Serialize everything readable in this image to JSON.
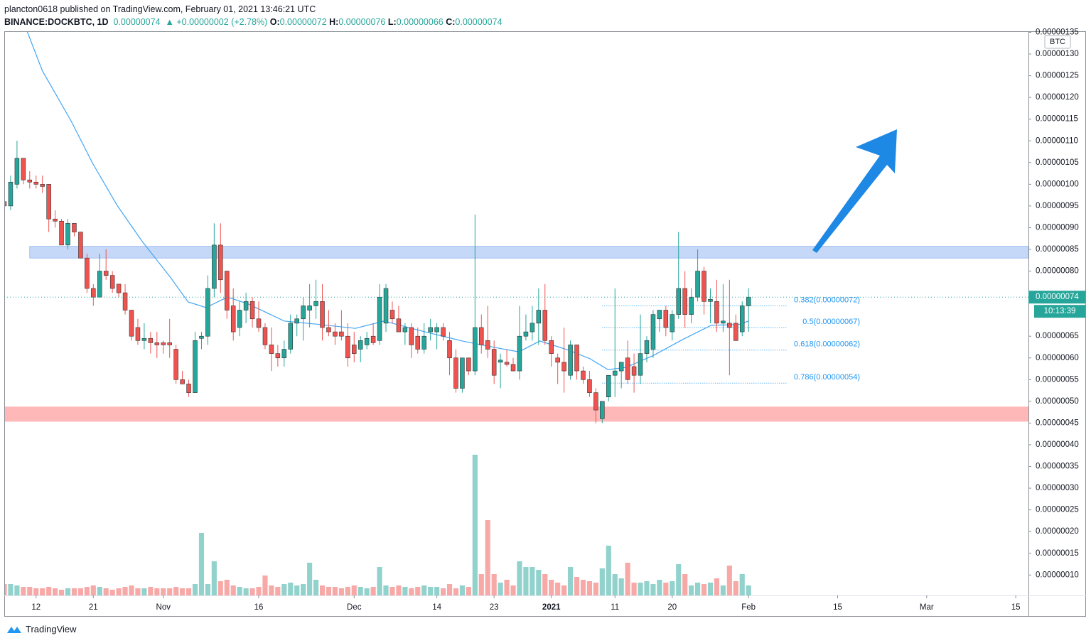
{
  "header": {
    "published": "plancton0618 published on TradingView.com, February 01, 2021 13:46:21 UTC",
    "symbol": "BINANCE:DOCKBTC, 1D",
    "price": "0.00000074",
    "change": "+0.00000002 (+2.78%)",
    "ohlc": [
      {
        "k": "O:",
        "v": "0.00000072"
      },
      {
        "k": "H:",
        "v": "0.00000076"
      },
      {
        "k": "L:",
        "v": "0.00000066"
      },
      {
        "k": "C:",
        "v": "0.00000074"
      }
    ]
  },
  "footer": {
    "brand": "TradingView"
  },
  "chart_data": {
    "type": "candlestick",
    "currency": "BTC",
    "countdown": "10:13:39",
    "up_color": "#26a69a",
    "down_color": "#ef5350",
    "xlim": [
      0,
      161
    ],
    "ylim": [
      5.3e-08,
      1.3524e-06
    ],
    "xticks": [
      {
        "value": 5,
        "label": "12"
      },
      {
        "value": 14,
        "label": "21"
      },
      {
        "value": 25,
        "label": "Nov"
      },
      {
        "value": 40,
        "label": "16"
      },
      {
        "value": 55,
        "label": "Dec"
      },
      {
        "value": 68,
        "label": "14"
      },
      {
        "value": 77,
        "label": "23"
      },
      {
        "value": 86,
        "label": "2021"
      },
      {
        "value": 96,
        "label": "11"
      },
      {
        "value": 105,
        "label": "20"
      },
      {
        "value": 117,
        "label": "Feb"
      },
      {
        "value": 131,
        "label": "15"
      },
      {
        "value": 145,
        "label": "Mar"
      },
      {
        "value": 159,
        "label": "15"
      }
    ],
    "yticks": [
      {
        "value": 1e-07,
        "label": "0.00000010"
      },
      {
        "value": 1.5e-07,
        "label": "0.00000015"
      },
      {
        "value": 2e-07,
        "label": "0.00000020"
      },
      {
        "value": 2.5e-07,
        "label": "0.00000025"
      },
      {
        "value": 3e-07,
        "label": "0.00000030"
      },
      {
        "value": 3.5e-07,
        "label": "0.00000035"
      },
      {
        "value": 4e-07,
        "label": "0.00000040"
      },
      {
        "value": 4.5e-07,
        "label": "0.00000045"
      },
      {
        "value": 5e-07,
        "label": "0.00000050"
      },
      {
        "value": 5.5e-07,
        "label": "0.00000055"
      },
      {
        "value": 6e-07,
        "label": "0.00000060"
      },
      {
        "value": 6.5e-07,
        "label": "0.00000065"
      },
      {
        "value": 8e-07,
        "label": "0.00000080"
      },
      {
        "value": 8.5e-07,
        "label": "0.00000085"
      },
      {
        "value": 9e-07,
        "label": "0.00000090"
      },
      {
        "value": 9.5e-07,
        "label": "0.00000095"
      },
      {
        "value": 1e-06,
        "label": "0.00000100"
      },
      {
        "value": 1.05e-06,
        "label": "0.00000105"
      },
      {
        "value": 1.1e-06,
        "label": "0.00000110"
      },
      {
        "value": 1.15e-06,
        "label": "0.00000115"
      },
      {
        "value": 1.2e-06,
        "label": "0.00000120"
      },
      {
        "value": 1.25e-06,
        "label": "0.00000125"
      },
      {
        "value": 1.3e-06,
        "label": "0.00000130"
      },
      {
        "value": 1.35e-06,
        "label": "0.00000135"
      }
    ],
    "last_price": {
      "value": 7.4e-07,
      "label": "0.00000074"
    },
    "x": [
      0,
      1,
      2,
      3,
      4,
      5,
      6,
      7,
      8,
      9,
      10,
      11,
      12,
      13,
      14,
      15,
      16,
      17,
      18,
      19,
      20,
      21,
      22,
      23,
      24,
      25,
      26,
      27,
      28,
      29,
      30,
      31,
      32,
      33,
      34,
      35,
      36,
      37,
      38,
      39,
      40,
      41,
      42,
      43,
      44,
      45,
      46,
      47,
      48,
      49,
      50,
      51,
      52,
      53,
      54,
      55,
      56,
      57,
      58,
      59,
      60,
      61,
      62,
      63,
      64,
      65,
      66,
      67,
      68,
      69,
      70,
      71,
      72,
      73,
      74,
      75,
      76,
      77,
      78,
      79,
      80,
      81,
      82,
      83,
      84,
      85,
      86,
      87,
      88,
      89,
      90,
      91,
      92,
      93,
      94,
      95,
      96,
      97,
      98,
      99,
      100,
      101,
      102,
      103,
      104,
      105,
      106,
      107,
      108,
      109,
      110,
      111,
      112,
      113,
      114,
      115,
      116,
      117
    ],
    "open": [
      9.6e-07,
      9.5e-07,
      1e-06,
      1.06e-06,
      1.01e-06,
      1.005e-06,
      1e-06,
      1e-06,
      9.2e-07,
      9.15e-07,
      8.6e-07,
      9.1e-07,
      8.9e-07,
      8.3e-07,
      7.6e-07,
      7.4e-07,
      8e-07,
      7.9e-07,
      7.7e-07,
      7.5e-07,
      7.1e-07,
      6.7e-07,
      6.4e-07,
      6.45e-07,
      6.35e-07,
      6.35e-07,
      6.35e-07,
      6.2e-07,
      5.5e-07,
      5.4e-07,
      5.2e-07,
      6.45e-07,
      6.5e-07,
      7.6e-07,
      8.6e-07,
      8e-07,
      7.2e-07,
      6.7e-07,
      7.1e-07,
      7.3e-07,
      6.9e-07,
      6.7e-07,
      6.3e-07,
      6.1e-07,
      6e-07,
      6.2e-07,
      6.8e-07,
      6.9e-07,
      7.1e-07,
      7.2e-07,
      7.3e-07,
      6.7e-07,
      6.6e-07,
      6.6e-07,
      6.5e-07,
      6.3e-07,
      6.2e-07,
      6.3e-07,
      6.5e-07,
      6.4e-07,
      6.8e-07,
      7.1e-07,
      6.9e-07,
      6.6e-07,
      6.7e-07,
      6.5e-07,
      6.2e-07,
      6.6e-07,
      6.6e-07,
      6.7e-07,
      6.4e-07,
      6e-07,
      5.3e-07,
      6e-07,
      5.7e-07,
      6.7e-07,
      6.4e-07,
      6.2e-07,
      5.9e-07,
      5.9e-07,
      5.85e-07,
      5.7e-07,
      6.5e-07,
      6.6e-07,
      6.8e-07,
      7.1e-07,
      6.4e-07,
      6e-07,
      5.9e-07,
      5.6e-07,
      6.3e-07,
      5.7e-07,
      5.5e-07,
      5.2e-07,
      4.6e-07,
      5.1e-07,
      5.6e-07,
      5.7e-07,
      6e-07,
      5.8e-07,
      5.6e-07,
      6.1e-07,
      6.2e-07,
      6.9e-07,
      7.1e-07,
      6.6e-07,
      7e-07,
      7.6e-07,
      7e-07,
      7.4e-07,
      8e-07,
      7.3e-07,
      7.3e-07,
      6.8e-07,
      6.8e-07,
      6.8e-07,
      6.6e-07,
      7.2e-07
    ],
    "high": [
      1e-06,
      1.02e-06,
      1.1e-06,
      1.06e-06,
      1.03e-06,
      1.02e-06,
      1.02e-06,
      1e-06,
      9.4e-07,
      9.2e-07,
      9.2e-07,
      9.1e-07,
      8.9e-07,
      8.4e-07,
      7.7e-07,
      8.4e-07,
      8.5e-07,
      8e-07,
      7.7e-07,
      7.7e-07,
      7.1e-07,
      6.9e-07,
      6.8e-07,
      6.6e-07,
      6.6e-07,
      6.4e-07,
      6.9e-07,
      6.3e-07,
      5.7e-07,
      5.5e-07,
      6.6e-07,
      6.6e-07,
      7.9e-07,
      9.1e-07,
      9.1e-07,
      8e-07,
      7.6e-07,
      7.3e-07,
      7.5e-07,
      7.4e-07,
      7.3e-07,
      6.8e-07,
      6.7e-07,
      6.3e-07,
      6.4e-07,
      7e-07,
      7e-07,
      7.4e-07,
      7.7e-07,
      7.8e-07,
      7.7e-07,
      7.1e-07,
      6.8e-07,
      7.1e-07,
      6.8e-07,
      6.6e-07,
      6.5e-07,
      6.6e-07,
      6.8e-07,
      7.7e-07,
      7.7e-07,
      7.3e-07,
      7.2e-07,
      6.8e-07,
      6.8e-07,
      6.7e-07,
      6.8e-07,
      6.9e-07,
      6.8e-07,
      6.8e-07,
      6.6e-07,
      6.2e-07,
      6e-07,
      6e-07,
      9.3e-07,
      7e-07,
      7.2e-07,
      6.4e-07,
      6.1e-07,
      6.2e-07,
      6e-07,
      7.2e-07,
      7e-07,
      7.2e-07,
      7.6e-07,
      7.7e-07,
      6.5e-07,
      6.1e-07,
      6.7e-07,
      6.4e-07,
      6.3e-07,
      5.8e-07,
      5.7e-07,
      5.3e-07,
      5e-07,
      5.6e-07,
      7.6e-07,
      5.9e-07,
      6.4e-07,
      6.1e-07,
      7e-07,
      6.5e-07,
      7.1e-07,
      7.1e-07,
      7.2e-07,
      7.1e-07,
      8.9e-07,
      8e-07,
      7.6e-07,
      8.5e-07,
      8.1e-07,
      7.6e-07,
      7.8e-07,
      7.7e-07,
      7.8e-07,
      7e-07,
      7.3e-07,
      7.6e-07
    ],
    "low": [
      9.2e-07,
      9.4e-07,
      9.9e-07,
      1e-06,
      9.9e-07,
      9.9e-07,
      9.8e-07,
      8.9e-07,
      9e-07,
      8.6e-07,
      8.5e-07,
      8.8e-07,
      8.3e-07,
      7.5e-07,
      7.2e-07,
      7.4e-07,
      7.8e-07,
      7.5e-07,
      7.4e-07,
      7e-07,
      6.4e-07,
      6.3e-07,
      6.2e-07,
      6.1e-07,
      6e-07,
      6.1e-07,
      6e-07,
      5.4e-07,
      5.4e-07,
      5.1e-07,
      5.2e-07,
      6.2e-07,
      6.3e-07,
      7.4e-07,
      7.5e-07,
      6.9e-07,
      6.4e-07,
      6.5e-07,
      6.8e-07,
      6.7e-07,
      6.6e-07,
      6.2e-07,
      5.7e-07,
      5.8e-07,
      5.8e-07,
      6.1e-07,
      6.5e-07,
      6.4e-07,
      6.7e-07,
      6.9e-07,
      6.4e-07,
      6.5e-07,
      6.3e-07,
      6.4e-07,
      5.8e-07,
      5.9e-07,
      5.9e-07,
      6.2e-07,
      6.3e-07,
      6.3e-07,
      6.6e-07,
      6.8e-07,
      6.6e-07,
      6.3e-07,
      6e-07,
      6.1e-07,
      6.1e-07,
      6.4e-07,
      6.2e-07,
      6.4e-07,
      5.6e-07,
      5.2e-07,
      5.2e-07,
      5.6e-07,
      5.6e-07,
      6.1e-07,
      6e-07,
      5.4e-07,
      5.3e-07,
      5.8e-07,
      5.7e-07,
      5.5e-07,
      6.4e-07,
      6.4e-07,
      6.3e-07,
      6.3e-07,
      5.8e-07,
      5.4e-07,
      5.2e-07,
      5.5e-07,
      5.5e-07,
      5.4e-07,
      5.1e-07,
      4.5e-07,
      4.5e-07,
      5e-07,
      5.1e-07,
      5.3e-07,
      5.4e-07,
      5.2e-07,
      5.4e-07,
      5.9e-07,
      6e-07,
      6.6e-07,
      6.5e-07,
      6.4e-07,
      6.9e-07,
      6.7e-07,
      6.8e-07,
      7.3e-07,
      7e-07,
      6.8e-07,
      6.6e-07,
      6.6e-07,
      5.6e-07,
      6.4e-07,
      6.5e-07,
      6.6e-07
    ],
    "close": [
      9.5e-07,
      1.005e-06,
      1.06e-06,
      1.01e-06,
      1.005e-06,
      1e-06,
      9.95e-07,
      9.2e-07,
      9.15e-07,
      8.6e-07,
      9.1e-07,
      8.9e-07,
      8.3e-07,
      7.6e-07,
      7.4e-07,
      8e-07,
      7.9e-07,
      7.6e-07,
      7.5e-07,
      7.1e-07,
      6.5e-07,
      6.4e-07,
      6.45e-07,
      6.35e-07,
      6.3e-07,
      6.3e-07,
      6.3e-07,
      5.5e-07,
      5.4e-07,
      5.2e-07,
      6.4e-07,
      6.5e-07,
      7.6e-07,
      8.6e-07,
      7.8e-07,
      7.1e-07,
      6.6e-07,
      7.1e-07,
      7.3e-07,
      6.9e-07,
      6.7e-07,
      6.3e-07,
      6.1e-07,
      6e-07,
      6.2e-07,
      6.8e-07,
      6.9e-07,
      7.2e-07,
      7.2e-07,
      7.3e-07,
      6.7e-07,
      6.6e-07,
      6.5e-07,
      6.5e-07,
      6e-07,
      6.1e-07,
      6.4e-07,
      6.45e-07,
      6.35e-07,
      7.4e-07,
      7.6e-07,
      6.9e-07,
      6.6e-07,
      6.7e-07,
      6.3e-07,
      6.2e-07,
      6.5e-07,
      6.7e-07,
      6.7e-07,
      6.5e-07,
      6e-07,
      5.3e-07,
      6e-07,
      5.7e-07,
      6.7e-07,
      6.3e-07,
      6.2e-07,
      5.6e-07,
      5.95e-07,
      5.85e-07,
      5.7e-07,
      6.5e-07,
      6.6e-07,
      6.8e-07,
      7.1e-07,
      6.4e-07,
      6.1e-07,
      5.9e-07,
      5.7e-07,
      6.3e-07,
      5.7e-07,
      5.5e-07,
      5.2e-07,
      4.8e-07,
      5e-07,
      5.6e-07,
      5.7e-07,
      5.9e-07,
      5.5e-07,
      5.6e-07,
      6.1e-07,
      6.4e-07,
      7e-07,
      7.1e-07,
      6.7e-07,
      7e-07,
      7.6e-07,
      7e-07,
      7.4e-07,
      8e-07,
      7.3e-07,
      7.35e-07,
      6.8e-07,
      6.85e-07,
      6.7e-07,
      6.4e-07,
      7.2e-07,
      7.4e-07
    ],
    "volume": [
      16,
      16,
      14,
      12,
      12,
      10,
      10,
      12,
      10,
      8,
      10,
      10,
      10,
      12,
      14,
      12,
      10,
      8,
      10,
      12,
      14,
      10,
      10,
      12,
      10,
      10,
      10,
      12,
      10,
      10,
      16,
      88,
      16,
      48,
      20,
      22,
      14,
      12,
      10,
      10,
      12,
      28,
      14,
      12,
      16,
      18,
      14,
      16,
      46,
      22,
      14,
      12,
      12,
      10,
      12,
      14,
      12,
      10,
      12,
      40,
      14,
      12,
      14,
      12,
      10,
      12,
      14,
      12,
      12,
      10,
      16,
      10,
      14,
      12,
      198,
      30,
      106,
      30,
      18,
      22,
      14,
      48,
      40,
      40,
      36,
      30,
      22,
      18,
      14,
      40,
      26,
      22,
      20,
      18,
      38,
      70,
      30,
      24,
      46,
      18,
      18,
      20,
      16,
      22,
      18,
      20,
      44,
      30,
      14,
      18,
      16,
      18,
      24,
      14,
      42,
      20,
      30,
      14
    ],
    "ma": {
      "color": "#42a5f5",
      "x": [
        3.6,
        6.0,
        10.5,
        13.9,
        17.8,
        21.7,
        26.1,
        28.9,
        31.7,
        35.1,
        38.4,
        44.0,
        49.6,
        55.2,
        59.7,
        66.4,
        72.0,
        77.5,
        80.9,
        84.2,
        88.7,
        92.1,
        94.9,
        97.7,
        102.1,
        106.6,
        111.1,
        115.5,
        117
      ],
      "values": [
        1.352e-06,
        1.261e-06,
        1.146e-06,
        1.048e-06,
        9.5e-07,
        8.68e-07,
        7.86e-07,
        7.29e-07,
        7.16e-07,
        7.4e-07,
        7.24e-07,
        6.85e-07,
        6.77e-07,
        6.68e-07,
        6.85e-07,
        6.59e-07,
        6.39e-07,
        6.23e-07,
        6.14e-07,
        6.39e-07,
        6.18e-07,
        5.98e-07,
        5.73e-07,
        5.78e-07,
        6.06e-07,
        6.42e-07,
        6.75e-07,
        6.77e-07,
        6.85e-07
      ]
    },
    "zones": [
      {
        "from": 8.3e-07,
        "to": 8.57e-07,
        "x_from": 4,
        "color": "#c5d8f7",
        "border": "#9fbdf0"
      },
      {
        "from": 4.54e-07,
        "to": 4.87e-07,
        "x_from": 0,
        "color": "#ffb8b8",
        "border": "#ffb8b8"
      }
    ],
    "fib": {
      "color": "#2196f3",
      "x_from": 94,
      "x_to": 123,
      "levels": [
        {
          "label": "0.382(0.00000072)",
          "value": 7.2e-07
        },
        {
          "label": "0.5(0.00000067)",
          "value": 6.7e-07
        },
        {
          "label": "0.618(0.00000062)",
          "value": 6.18e-07
        },
        {
          "label": "0.786(0.00000054)",
          "value": 5.42e-07
        }
      ]
    }
  }
}
